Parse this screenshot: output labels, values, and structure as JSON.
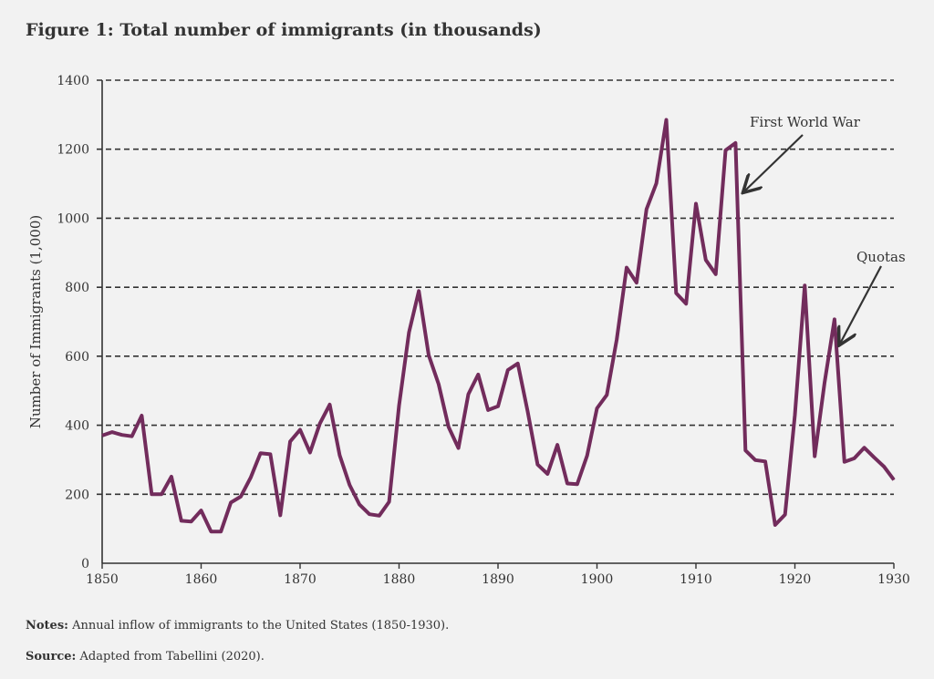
{
  "title": "Figure 1: Total number of immigrants (in thousands)",
  "notes": {
    "label": "Notes:",
    "text": "Annual inflow of immigrants to the United States (1850-1930)."
  },
  "source": {
    "label": "Source:",
    "text": "Adapted from Tabellini (2020)."
  },
  "chart_data": {
    "type": "line",
    "title": "Figure 1: Total number of immigrants (in thousands)",
    "xlabel": "",
    "ylabel": "Number of Immigrants (1,000)",
    "xlim": [
      1850,
      1930
    ],
    "ylim": [
      0,
      1400
    ],
    "xticks": [
      "1850",
      "1860",
      "1870",
      "1880",
      "1890",
      "1900",
      "1910",
      "1920",
      "1930"
    ],
    "yticks": [
      "0",
      "200",
      "400",
      "600",
      "800",
      "1000",
      "1200",
      "1400"
    ],
    "grid": "horizontal dashed",
    "line_color": "#722c5c",
    "x": [
      1850,
      1851,
      1852,
      1853,
      1854,
      1855,
      1856,
      1857,
      1858,
      1859,
      1860,
      1861,
      1862,
      1863,
      1864,
      1865,
      1866,
      1867,
      1868,
      1869,
      1870,
      1871,
      1872,
      1873,
      1874,
      1875,
      1876,
      1877,
      1878,
      1879,
      1880,
      1881,
      1882,
      1883,
      1884,
      1885,
      1886,
      1887,
      1888,
      1889,
      1890,
      1891,
      1892,
      1893,
      1894,
      1895,
      1896,
      1897,
      1898,
      1899,
      1900,
      1901,
      1902,
      1903,
      1904,
      1905,
      1906,
      1907,
      1908,
      1909,
      1910,
      1911,
      1912,
      1913,
      1914,
      1915,
      1916,
      1917,
      1918,
      1919,
      1920,
      1921,
      1922,
      1923,
      1924,
      1925,
      1926,
      1927,
      1928,
      1929,
      1930
    ],
    "y": [
      370,
      380,
      372,
      368,
      428,
      200,
      200,
      251,
      123,
      121,
      153,
      92,
      92,
      176,
      193,
      248,
      319,
      316,
      139,
      353,
      387,
      321,
      405,
      460,
      313,
      227,
      170,
      142,
      138,
      178,
      457,
      669,
      789,
      603,
      519,
      395,
      334,
      490,
      547,
      444,
      455,
      560,
      579,
      440,
      286,
      259,
      343,
      231,
      229,
      312,
      449,
      488,
      649,
      857,
      813,
      1026,
      1101,
      1285,
      783,
      752,
      1042,
      879,
      838,
      1197,
      1218,
      327,
      299,
      295,
      111,
      141,
      430,
      805,
      310,
      523,
      707,
      294,
      304,
      335,
      307,
      280,
      242
    ],
    "annotations": [
      {
        "text": "First World War",
        "x": 1914.5,
        "y": 1080
      },
      {
        "text": "Quotas",
        "x": 1924.6,
        "y": 630
      }
    ]
  }
}
